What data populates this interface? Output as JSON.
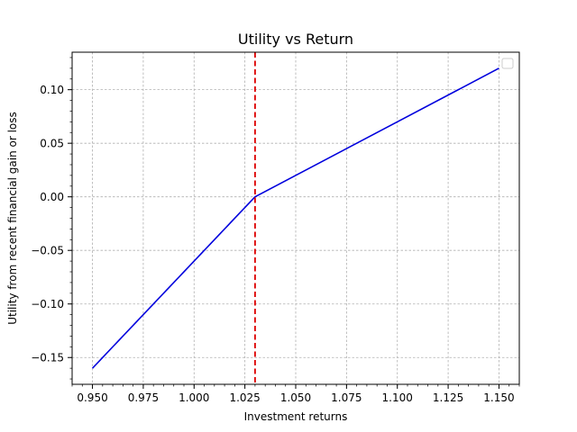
{
  "chart_data": {
    "type": "line",
    "title": "Utility vs Return",
    "xlabel": "Investment returns",
    "ylabel": "Utility from recent financial gain or loss",
    "xlim": [
      0.94,
      1.16
    ],
    "ylim": [
      -0.175,
      0.135
    ],
    "x_ticks": [
      0.95,
      0.975,
      1.0,
      1.025,
      1.05,
      1.075,
      1.1,
      1.125,
      1.15
    ],
    "x_tick_labels": [
      "0.950",
      "0.975",
      "1.000",
      "1.025",
      "1.050",
      "1.075",
      "1.100",
      "1.125",
      "1.150"
    ],
    "y_ticks": [
      -0.15,
      -0.1,
      -0.05,
      0.0,
      0.05,
      0.1
    ],
    "y_tick_labels": [
      "−0.15",
      "−0.10",
      "−0.05",
      "0.00",
      "0.05",
      "0.10"
    ],
    "grid": true,
    "legend": "upper-right, empty",
    "series": [
      {
        "color": "#0000dd",
        "style": "solid",
        "x": [
          0.95,
          1.03,
          1.15
        ],
        "y": [
          -0.16,
          0.0,
          0.12
        ]
      }
    ],
    "reference_lines": [
      {
        "orientation": "vertical",
        "x": 1.03,
        "color": "#dd0000",
        "style": "dashed"
      }
    ]
  }
}
